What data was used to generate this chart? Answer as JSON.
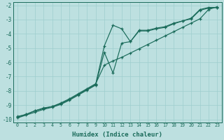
{
  "xlabel": "Humidex (Indice chaleur)",
  "ylabel": "",
  "xlim": [
    -0.5,
    23.5
  ],
  "ylim": [
    -10.2,
    -1.8
  ],
  "yticks": [
    -10,
    -9,
    -8,
    -7,
    -6,
    -5,
    -4,
    -3,
    -2
  ],
  "xticks": [
    0,
    1,
    2,
    3,
    4,
    5,
    6,
    7,
    8,
    9,
    10,
    11,
    12,
    13,
    14,
    15,
    16,
    17,
    18,
    19,
    20,
    21,
    22,
    23
  ],
  "bg_color": "#bde0e0",
  "line_color": "#1a6b5a",
  "grid_color": "#9ecece",
  "line1_x": [
    0,
    1,
    2,
    3,
    4,
    5,
    6,
    7,
    8,
    9,
    10,
    11,
    12,
    13,
    14,
    15,
    16,
    17,
    18,
    19,
    20,
    21,
    22,
    23
  ],
  "line1_y": [
    -9.8,
    -9.65,
    -9.4,
    -9.2,
    -9.1,
    -8.85,
    -8.55,
    -8.2,
    -7.85,
    -7.5,
    -6.2,
    -5.9,
    -5.65,
    -5.35,
    -5.05,
    -4.75,
    -4.45,
    -4.15,
    -3.85,
    -3.55,
    -3.25,
    -2.95,
    -2.3,
    -2.1
  ],
  "line2_x": [
    0,
    1,
    2,
    3,
    4,
    5,
    6,
    7,
    8,
    9,
    10,
    11,
    12,
    13,
    14,
    15,
    16,
    17,
    18,
    19,
    20,
    21,
    22,
    23
  ],
  "line2_y": [
    -9.85,
    -9.65,
    -9.4,
    -9.25,
    -9.1,
    -8.9,
    -8.6,
    -8.25,
    -7.9,
    -7.55,
    -4.85,
    -3.4,
    -3.65,
    -4.55,
    -3.75,
    -3.75,
    -3.6,
    -3.5,
    -3.25,
    -3.1,
    -2.9,
    -2.3,
    -2.15,
    -2.15
  ],
  "line3_x": [
    0,
    1,
    2,
    3,
    4,
    5,
    6,
    7,
    8,
    9,
    10,
    11,
    12,
    13,
    14,
    15,
    16,
    17,
    18,
    19,
    20,
    21,
    22,
    23
  ],
  "line3_y": [
    -9.9,
    -9.7,
    -9.5,
    -9.3,
    -9.15,
    -8.95,
    -8.65,
    -8.3,
    -7.95,
    -7.6,
    -5.3,
    -6.75,
    -4.65,
    -4.55,
    -3.8,
    -3.8,
    -3.65,
    -3.55,
    -3.3,
    -3.1,
    -2.95,
    -2.35,
    -2.2,
    -2.15
  ]
}
